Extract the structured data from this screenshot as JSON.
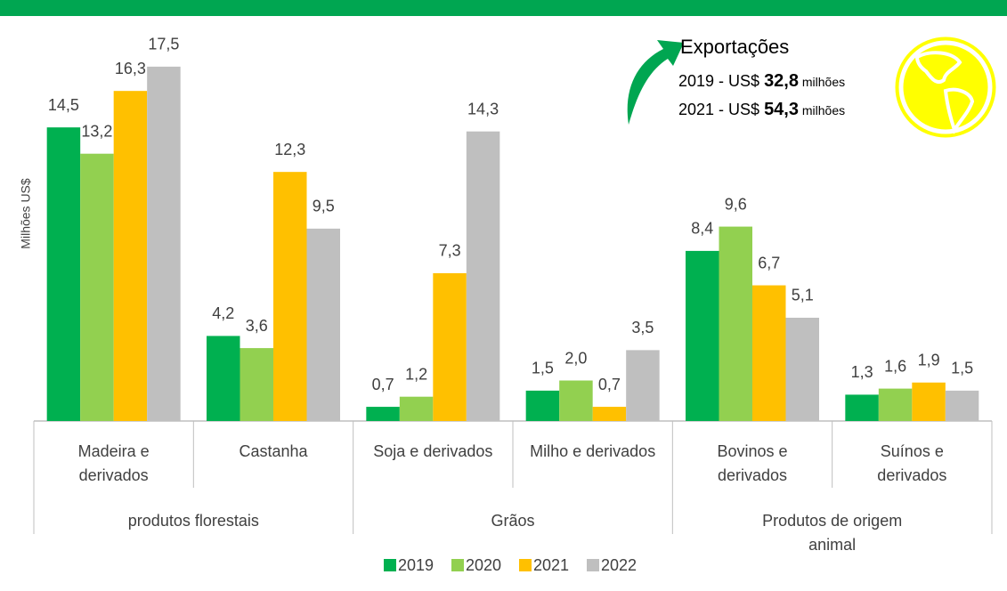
{
  "chart_data": {
    "type": "bar",
    "y_label": "Milhões US$",
    "groups": [
      {
        "name": "produtos florestais",
        "categories": [
          "Madeira e\nderivados",
          "Castanha"
        ]
      },
      {
        "name": "Grãos",
        "categories": [
          "Soja e derivados",
          "Milho e derivados"
        ]
      },
      {
        "name": "Produtos de origem animal",
        "categories": [
          "Bovinos e\nderivados",
          "Suínos e\nderivados"
        ]
      }
    ],
    "series": [
      {
        "name": "2019",
        "color": "#00b050",
        "values": [
          14.5,
          4.2,
          0.7,
          1.5,
          8.4,
          1.3
        ],
        "value_labels": [
          "14,5",
          "4,2",
          "0,7",
          "1,5",
          "8,4",
          "1,3"
        ]
      },
      {
        "name": "2020",
        "color": "#92d050",
        "values": [
          13.2,
          3.6,
          1.2,
          2.0,
          9.6,
          1.6
        ],
        "value_labels": [
          "13,2",
          "3,6",
          "1,2",
          "2,0",
          "9,6",
          "1,6"
        ]
      },
      {
        "name": "2021",
        "color": "#ffc000",
        "values": [
          16.3,
          12.3,
          7.3,
          0.7,
          6.7,
          1.9
        ],
        "value_labels": [
          "16,3",
          "12,3",
          "7,3",
          "0,7",
          "6,7",
          "1,9"
        ]
      },
      {
        "name": "2022",
        "color": "#bfbfbf",
        "values": [
          17.5,
          9.5,
          14.3,
          3.5,
          5.1,
          1.5
        ],
        "value_labels": [
          "17,5",
          "9,5",
          "14,3",
          "3,5",
          "5,1",
          "1,5"
        ]
      }
    ],
    "ylim": [
      0,
      20
    ],
    "annotation": {
      "title": "Exportações",
      "lines": [
        [
          "2019 - US$ ",
          "32,8",
          " milhões"
        ],
        [
          "2021 - US$ ",
          "54,3",
          " milhões"
        ]
      ]
    }
  }
}
